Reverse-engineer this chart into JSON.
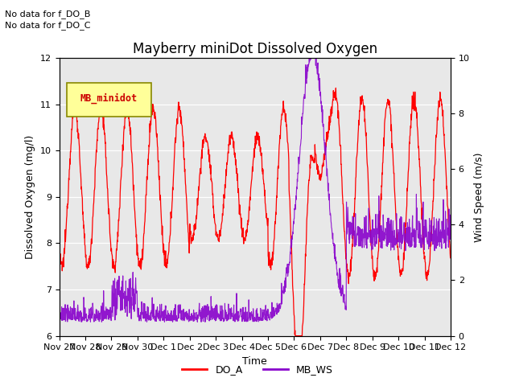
{
  "title": "Mayberry miniDot Dissolved Oxygen",
  "xlabel": "Time",
  "ylabel_left": "Dissolved Oxygen (mg/l)",
  "ylabel_right": "Wind Speed (m/s)",
  "annotation1": "No data for f_DO_B",
  "annotation2": "No data for f_DO_C",
  "legend_label": "MB_minidot",
  "do_label": "DO_A",
  "ws_label": "MB_WS",
  "ylim_left": [
    6.0,
    12.0
  ],
  "ylim_right": [
    0.0,
    10.0
  ],
  "bg_color": "#e8e8e8",
  "do_color": "#ff0000",
  "ws_color": "#8800cc",
  "legend_box_facecolor": "#ffff99",
  "legend_box_edgecolor": "#888800",
  "legend_text_color": "#cc0000",
  "x_tick_labels": [
    "Nov 27",
    "Nov 28",
    "Nov 29",
    "Nov 30",
    "Dec 1",
    "Dec 2",
    "Dec 3",
    "Dec 4",
    "Dec 5",
    "Dec 6",
    "Dec 7",
    "Dec 8",
    "Dec 9",
    "Dec 10",
    "Dec 11",
    "Dec 12"
  ],
  "x_tick_positions": [
    0,
    1,
    2,
    3,
    4,
    5,
    6,
    7,
    8,
    9,
    10,
    11,
    12,
    13,
    14,
    15
  ],
  "title_fontsize": 12,
  "label_fontsize": 9,
  "tick_fontsize": 8
}
